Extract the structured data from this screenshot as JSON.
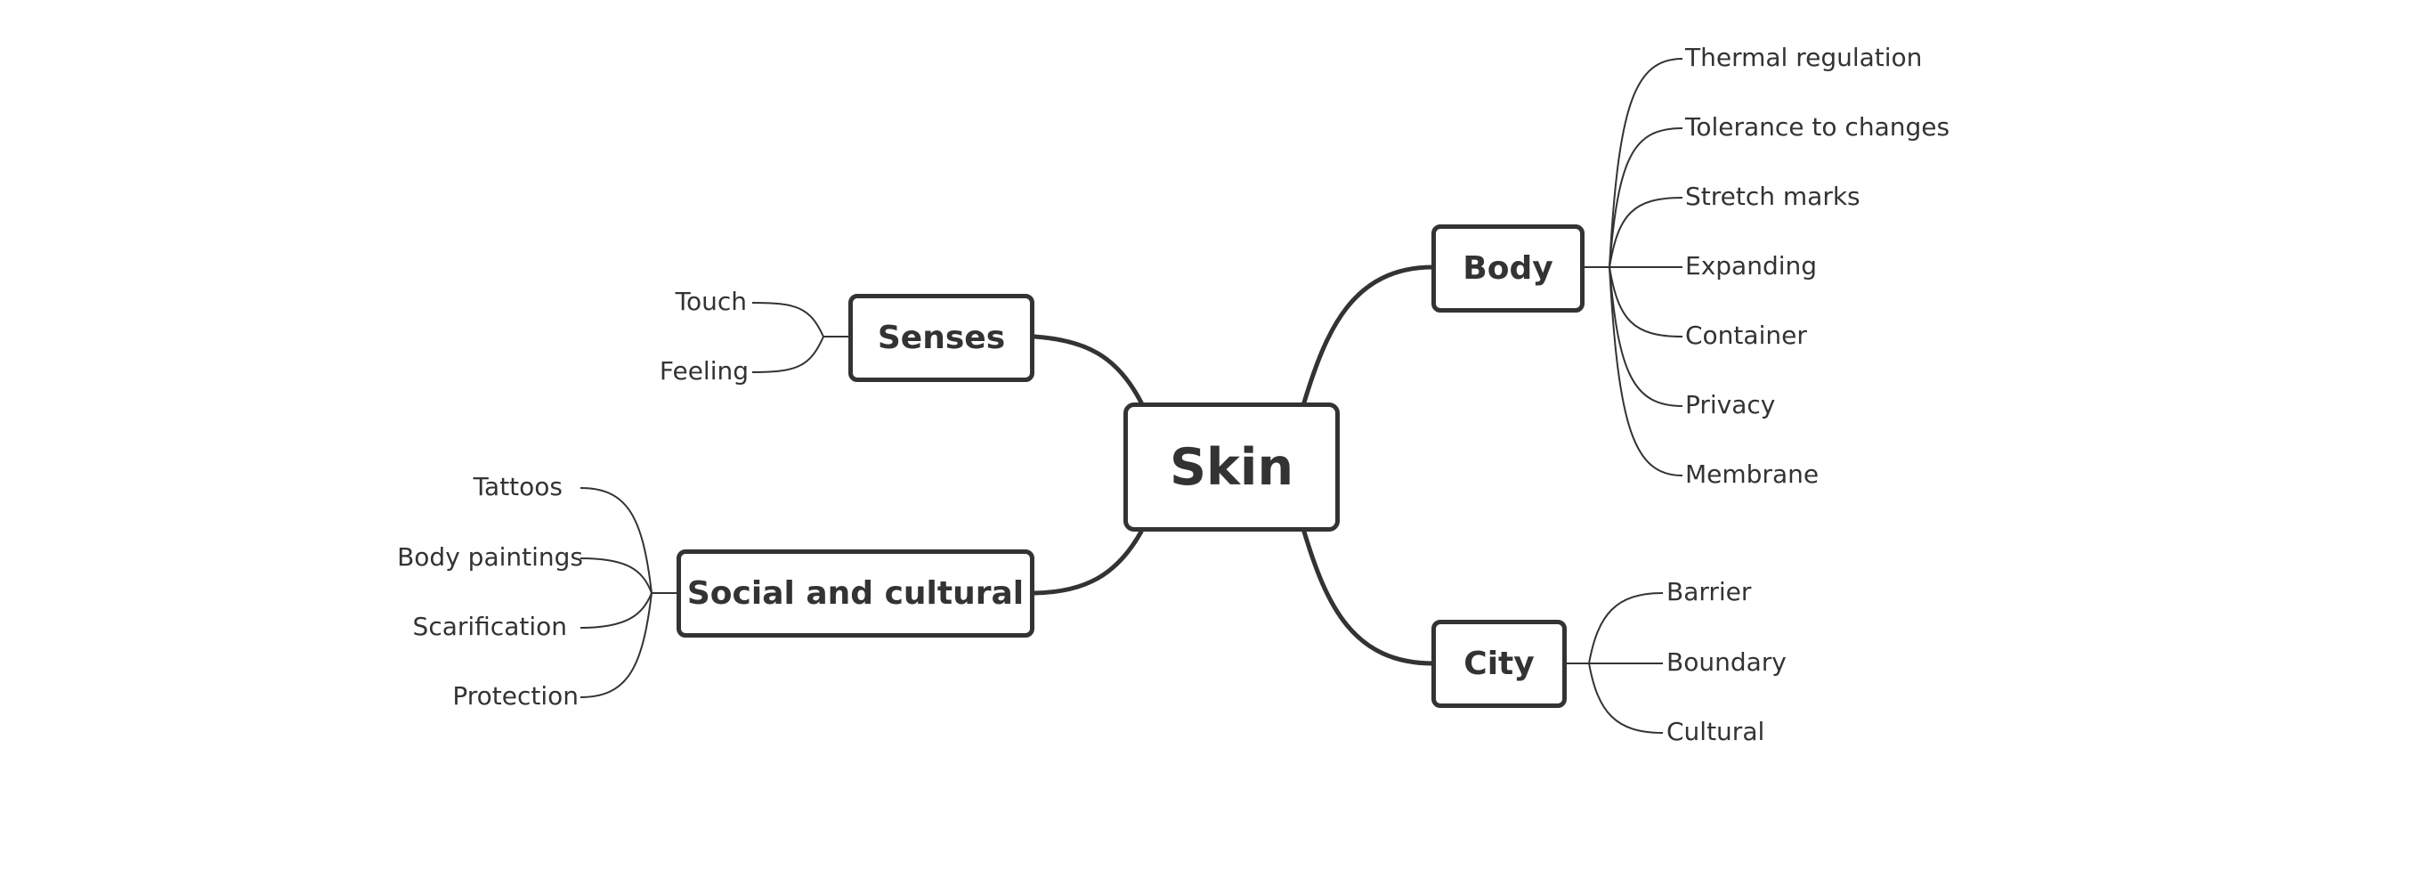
{
  "center": {
    "label": "Skin"
  },
  "branches": {
    "senses": {
      "label": "Senses",
      "leaves": [
        "Touch",
        "Feeling"
      ]
    },
    "social": {
      "label": "Social and cultural",
      "leaves": [
        "Tattoos",
        "Body paintings",
        "Scarification",
        "Protection"
      ]
    },
    "body": {
      "label": "Body",
      "leaves": [
        "Thermal regulation",
        "Tolerance to changes",
        "Stretch marks",
        "Expanding",
        "Container",
        "Privacy",
        "Membrane"
      ]
    },
    "city": {
      "label": "City",
      "leaves": [
        "Barrier",
        "Boundary",
        "Cultural"
      ]
    }
  },
  "colors": {
    "stroke": "#333333",
    "text": "#333333",
    "background": "#ffffff"
  }
}
